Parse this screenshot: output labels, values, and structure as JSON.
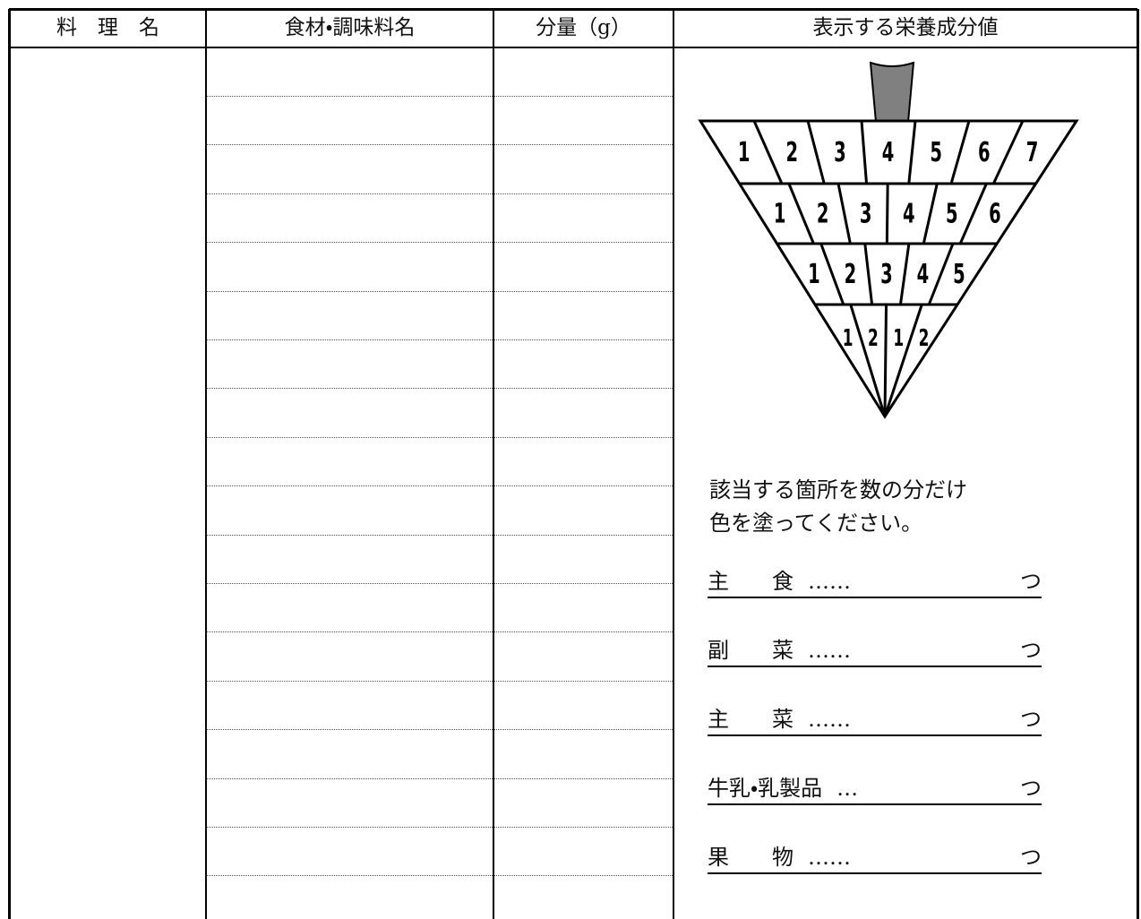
{
  "header": {
    "columns": [
      "料　理　名",
      "食材・調味料名",
      "分量（g）",
      "表示する栄養成分値"
    ]
  },
  "diagram": {
    "rows": [
      [
        "1",
        "2",
        "3",
        "4",
        "5",
        "6",
        "7"
      ],
      [
        "1",
        "2",
        "3",
        "4",
        "5",
        "6"
      ],
      [
        "1",
        "2",
        "3",
        "4",
        "5"
      ],
      [
        "1",
        "2",
        "1",
        "2"
      ]
    ]
  },
  "instruction": [
    "該当する箇所を数の分だけ",
    "色を塗ってください。"
  ],
  "items": [
    {
      "label": "主　　食",
      "leader": "……",
      "unit": "つ"
    },
    {
      "label": "副　　菜",
      "leader": "……",
      "unit": "つ"
    },
    {
      "label": "主　　菜",
      "leader": "……",
      "unit": "つ"
    },
    {
      "label": "牛乳・乳製品",
      "leader": "…",
      "unit": "つ"
    },
    {
      "label": "果　　物",
      "leader": "……",
      "unit": "つ"
    }
  ]
}
